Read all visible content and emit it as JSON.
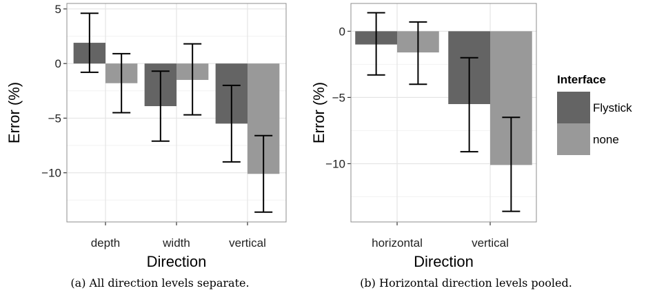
{
  "chart_data": [
    {
      "type": "bar",
      "caption": "(a) All direction levels separate.",
      "xlabel": "Direction",
      "ylabel": "Error (%)",
      "categories": [
        "depth",
        "width",
        "vertical"
      ],
      "ylim": [
        -14.5,
        5.5
      ],
      "yticks": [
        5,
        0,
        -5,
        -10
      ],
      "yticklabels": [
        "5",
        "0",
        "−5",
        "−10"
      ],
      "grid": true,
      "series": [
        {
          "name": "Flystick",
          "color": "#646464",
          "values": [
            1.9,
            -3.9,
            -5.5
          ],
          "err_low": [
            -0.8,
            -7.1,
            -9.0
          ],
          "err_high": [
            4.6,
            -0.7,
            -2.0
          ]
        },
        {
          "name": "none",
          "color": "#999999",
          "values": [
            -1.8,
            -1.5,
            -10.1
          ],
          "err_low": [
            -4.5,
            -4.7,
            -13.6
          ],
          "err_high": [
            0.9,
            1.8,
            -6.6
          ]
        }
      ]
    },
    {
      "type": "bar",
      "caption": "(b) Horizontal direction levels pooled.",
      "xlabel": "Direction",
      "ylabel": "Error (%)",
      "categories": [
        "horizontal",
        "vertical"
      ],
      "ylim": [
        -14.4,
        2.1
      ],
      "yticks": [
        0,
        -5,
        -10
      ],
      "yticklabels": [
        "0",
        "−5",
        "−10"
      ],
      "grid": true,
      "series": [
        {
          "name": "Flystick",
          "color": "#646464",
          "values": [
            -1.0,
            -5.5
          ],
          "err_low": [
            -3.3,
            -9.1
          ],
          "err_high": [
            1.4,
            -2.0
          ]
        },
        {
          "name": "none",
          "color": "#999999",
          "values": [
            -1.6,
            -10.1
          ],
          "err_low": [
            -4.0,
            -13.6
          ],
          "err_high": [
            0.7,
            -6.5
          ]
        }
      ]
    }
  ],
  "legend": {
    "title": "Interface",
    "items": [
      {
        "label": "Flystick",
        "color": "#646464"
      },
      {
        "label": "none",
        "color": "#999999"
      }
    ]
  }
}
